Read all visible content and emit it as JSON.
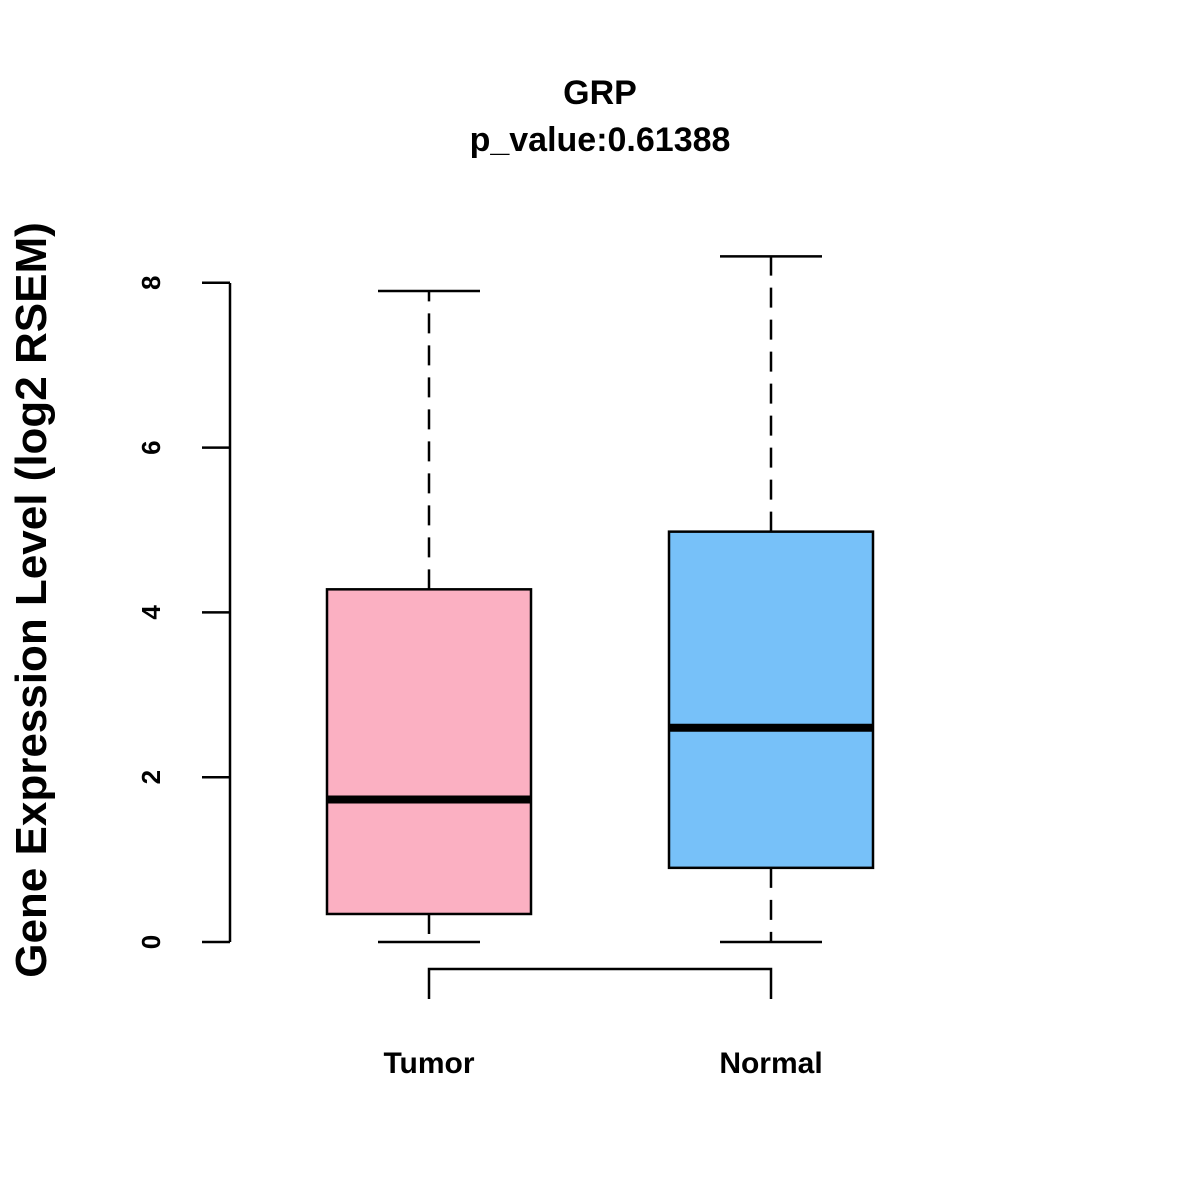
{
  "chart_data": {
    "type": "box",
    "title": "GRP",
    "subtitle": "p_value:0.61388",
    "ylabel": "Gene Expression Level (log2 RSEM)",
    "xlabel": "",
    "ylim": [
      0,
      8.3
    ],
    "yticks": [
      0,
      2,
      4,
      6,
      8
    ],
    "categories": [
      "Tumor",
      "Normal"
    ],
    "series": [
      {
        "name": "Tumor",
        "whisker_low": 0,
        "q1": 0.34,
        "median": 1.73,
        "q3": 4.28,
        "whisker_high": 7.9,
        "color": "#FBB0C2"
      },
      {
        "name": "Normal",
        "whisker_low": 0,
        "q1": 0.9,
        "median": 2.6,
        "q3": 4.98,
        "whisker_high": 8.32,
        "color": "#77C1F9"
      }
    ],
    "comparison_bracket": [
      "Tumor",
      "Normal"
    ]
  }
}
